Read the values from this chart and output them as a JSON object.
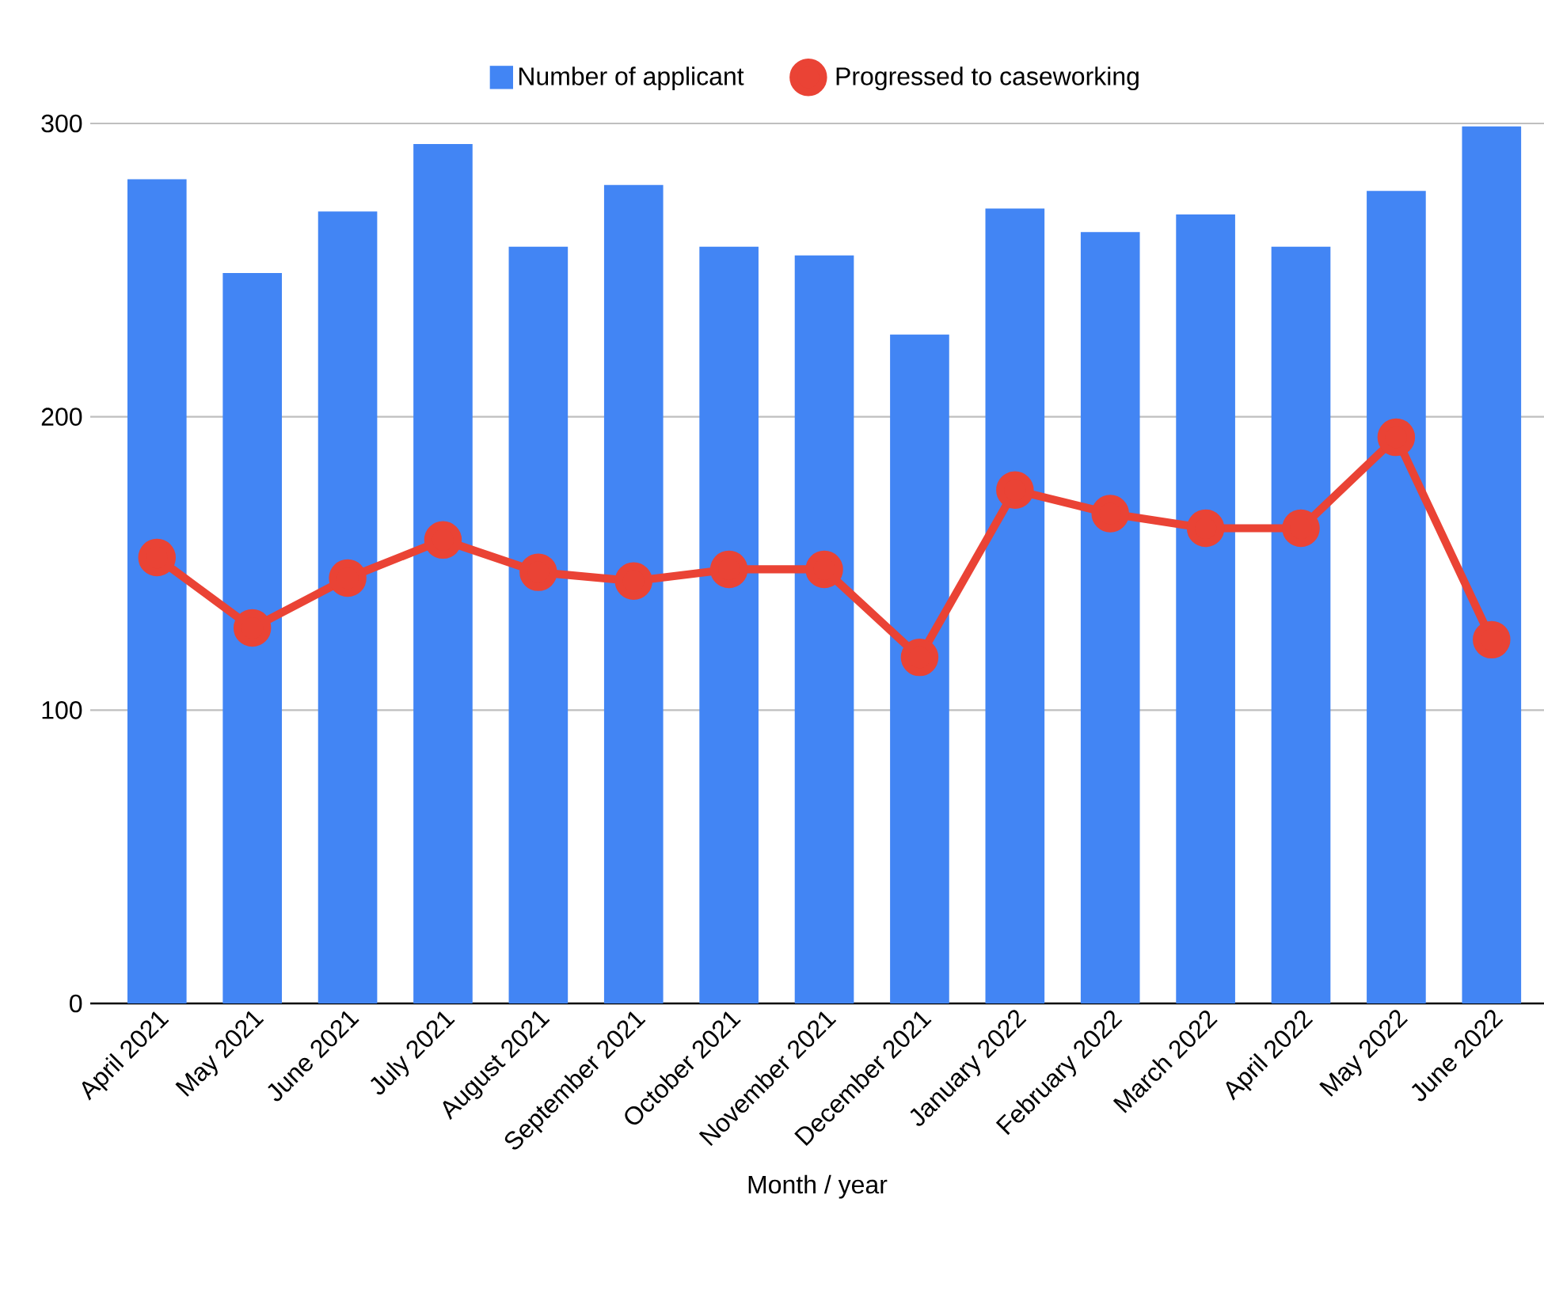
{
  "chart_data": {
    "type": "bar",
    "xlabel": "Month / year",
    "categories": [
      "April 2021",
      "May 2021",
      "June 2021",
      "July 2021",
      "August 2021",
      "September 2021",
      "October 2021",
      "November 2021",
      "December 2021",
      "January 2022",
      "February 2022",
      "March 2022",
      "April 2022",
      "May 2022",
      "June 2022"
    ],
    "series": [
      {
        "name": "Number of applicant",
        "color": "#4285f4",
        "values": [
          281,
          249,
          270,
          293,
          258,
          279,
          258,
          255,
          228,
          271,
          263,
          269,
          258,
          277,
          299
        ]
      },
      {
        "name": "Progressed to caseworking",
        "type": "line",
        "color": "#ea4335",
        "marker": "circle",
        "values": [
          152,
          128,
          145,
          158,
          147,
          144,
          148,
          148,
          118,
          175,
          167,
          162,
          162,
          193,
          124
        ]
      }
    ],
    "ylim": [
      0,
      300
    ],
    "yticks": [
      0,
      100,
      200,
      300
    ],
    "grid": "y",
    "legend": "top"
  }
}
